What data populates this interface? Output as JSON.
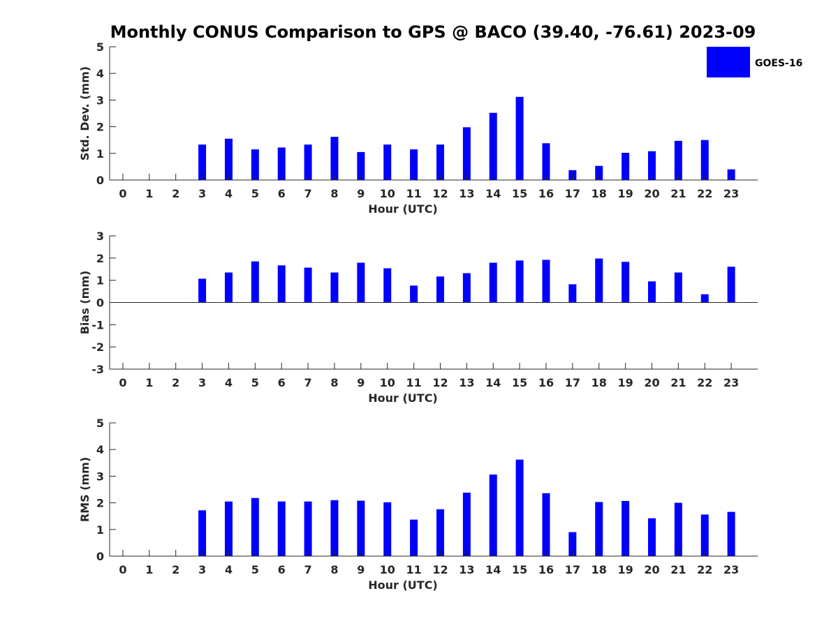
{
  "title": "Monthly CONUS Comparison to GPS @ BACO (39.40, -76.61) 2023-09",
  "colors": {
    "bar": "#0000ff",
    "axis": "#262626"
  },
  "chart_data": [
    {
      "type": "bar",
      "xlabel": "Hour (UTC)",
      "ylabel": "Std. Dev. (mm)",
      "categories": [
        "0",
        "1",
        "2",
        "3",
        "4",
        "5",
        "6",
        "7",
        "8",
        "9",
        "10",
        "11",
        "12",
        "13",
        "14",
        "15",
        "16",
        "17",
        "18",
        "19",
        "20",
        "21",
        "22",
        "23"
      ],
      "series": [
        {
          "name": "GOES-16",
          "values": [
            0,
            0,
            0,
            1.33,
            1.55,
            1.15,
            1.22,
            1.33,
            1.62,
            1.05,
            1.33,
            1.15,
            1.33,
            1.98,
            2.52,
            3.12,
            1.38,
            0.37,
            0.53,
            1.02,
            1.08,
            1.47,
            1.5,
            0.4
          ]
        }
      ],
      "ylim": [
        0,
        5
      ],
      "yticks": [
        0,
        1,
        2,
        3,
        4,
        5
      ],
      "legend": "top-right",
      "grid": false
    },
    {
      "type": "bar",
      "xlabel": "Hour (UTC)",
      "ylabel": "Bias (mm)",
      "categories": [
        "0",
        "1",
        "2",
        "3",
        "4",
        "5",
        "6",
        "7",
        "8",
        "9",
        "10",
        "11",
        "12",
        "13",
        "14",
        "15",
        "16",
        "17",
        "18",
        "19",
        "20",
        "21",
        "22",
        "23"
      ],
      "series": [
        {
          "name": "GOES-16",
          "values": [
            0,
            0,
            0,
            1.07,
            1.35,
            1.85,
            1.67,
            1.57,
            1.35,
            1.79,
            1.54,
            0.76,
            1.17,
            1.32,
            1.79,
            1.89,
            1.92,
            0.82,
            1.98,
            1.83,
            0.95,
            1.35,
            0.37,
            1.61
          ]
        }
      ],
      "ylim": [
        -3,
        3
      ],
      "yticks": [
        -3,
        -2,
        -1,
        0,
        1,
        2,
        3
      ],
      "grid": false
    },
    {
      "type": "bar",
      "xlabel": "Hour (UTC)",
      "ylabel": "RMS (mm)",
      "categories": [
        "0",
        "1",
        "2",
        "3",
        "4",
        "5",
        "6",
        "7",
        "8",
        "9",
        "10",
        "11",
        "12",
        "13",
        "14",
        "15",
        "16",
        "17",
        "18",
        "19",
        "20",
        "21",
        "22",
        "23"
      ],
      "series": [
        {
          "name": "GOES-16",
          "values": [
            0,
            0,
            0,
            1.72,
            2.05,
            2.18,
            2.05,
            2.05,
            2.1,
            2.08,
            2.02,
            1.37,
            1.76,
            2.38,
            3.06,
            3.62,
            2.36,
            0.9,
            2.03,
            2.07,
            1.42,
            2.0,
            1.56,
            1.66
          ]
        }
      ],
      "ylim": [
        0,
        5
      ],
      "yticks": [
        0,
        1,
        2,
        3,
        4,
        5
      ],
      "grid": false
    }
  ]
}
